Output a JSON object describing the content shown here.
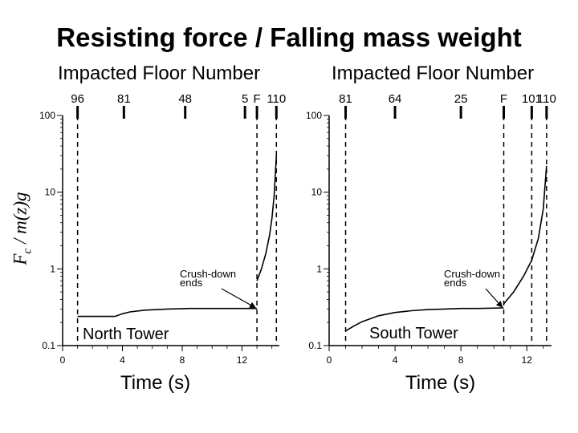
{
  "title": "Resisting force / Falling mass weight",
  "y_axis_label": {
    "main": "F",
    "sub": "c",
    "rest": " / m(z)g"
  },
  "chart_data": [
    {
      "type": "line",
      "panel": "left",
      "panel_label": "North Tower",
      "top_axis_label": "Impacted Floor Number",
      "top_ticks": [
        {
          "label": "96",
          "x": 1.0
        },
        {
          "label": "81",
          "x": 4.1
        },
        {
          "label": "48",
          "x": 8.2
        },
        {
          "label": "5",
          "x": 12.2
        },
        {
          "label": "F",
          "x": 13.0
        },
        {
          "label": "110",
          "x": 14.3
        }
      ],
      "xlabel": "Time (s)",
      "xlim": [
        0,
        14.5
      ],
      "x_ticks": [
        0,
        4,
        8,
        12
      ],
      "ylabel": "Fc / m(z)g",
      "yscale": "log",
      "ylim": [
        0.1,
        100
      ],
      "y_ticks": [
        {
          "v": 0.1,
          "label": "0.1"
        },
        {
          "v": 1,
          "label": "1"
        },
        {
          "v": 10,
          "label": "10"
        },
        {
          "v": 100,
          "label": "100"
        }
      ],
      "vlines": [
        1.0,
        13.0,
        14.3
      ],
      "series": [
        {
          "x": [
            1.0,
            2.0,
            3.0,
            3.5,
            4.0,
            4.5,
            5.5,
            7.0,
            8.5,
            10.0,
            11.5,
            13.0
          ],
          "y": [
            0.24,
            0.24,
            0.24,
            0.24,
            0.26,
            0.275,
            0.29,
            0.3,
            0.305,
            0.305,
            0.305,
            0.305
          ]
        },
        {
          "x": [
            13.0,
            13.3,
            13.6,
            13.85,
            14.0,
            14.15,
            14.3
          ],
          "y": [
            0.7,
            1.0,
            1.6,
            2.8,
            4.5,
            9.0,
            30.0
          ]
        }
      ],
      "annotation": {
        "text": "Crush-down ends",
        "lines": [
          "Crush-down",
          "ends"
        ],
        "arrow_to": [
          13.0,
          0.305
        ]
      }
    },
    {
      "type": "line",
      "panel": "right",
      "panel_label": "South Tower",
      "top_axis_label": "Impacted Floor Number",
      "top_ticks": [
        {
          "label": "81",
          "x": 1.0
        },
        {
          "label": "64",
          "x": 4.0
        },
        {
          "label": "25",
          "x": 8.0
        },
        {
          "label": "F",
          "x": 10.6
        },
        {
          "label": "101",
          "x": 12.3
        },
        {
          "label": "110",
          "x": 13.2
        }
      ],
      "xlabel": "Time (s)",
      "xlim": [
        0,
        13.5
      ],
      "x_ticks": [
        0,
        4,
        8,
        12
      ],
      "ylabel": "Fc / m(z)g",
      "yscale": "log",
      "ylim": [
        0.1,
        100
      ],
      "y_ticks": [
        {
          "v": 0.1,
          "label": "0.1"
        },
        {
          "v": 1,
          "label": "1"
        },
        {
          "v": 10,
          "label": "10"
        },
        {
          "v": 100,
          "label": "100"
        }
      ],
      "vlines": [
        1.0,
        10.6,
        12.3,
        13.2
      ],
      "series": [
        {
          "x": [
            1.0,
            1.5,
            2.0,
            3.0,
            4.0,
            5.0,
            6.0,
            7.0,
            8.0,
            9.0,
            10.6
          ],
          "y": [
            0.155,
            0.18,
            0.205,
            0.245,
            0.27,
            0.285,
            0.295,
            0.3,
            0.305,
            0.305,
            0.31
          ]
        },
        {
          "x": [
            10.6,
            11.2,
            11.8,
            12.3,
            12.7,
            13.0,
            13.2
          ],
          "y": [
            0.35,
            0.5,
            0.8,
            1.3,
            2.5,
            6.0,
            22.0
          ]
        }
      ],
      "annotation": {
        "text": "Crush-down ends",
        "lines": [
          "Crush-down",
          "ends"
        ],
        "arrow_to": [
          10.6,
          0.31
        ]
      }
    }
  ]
}
